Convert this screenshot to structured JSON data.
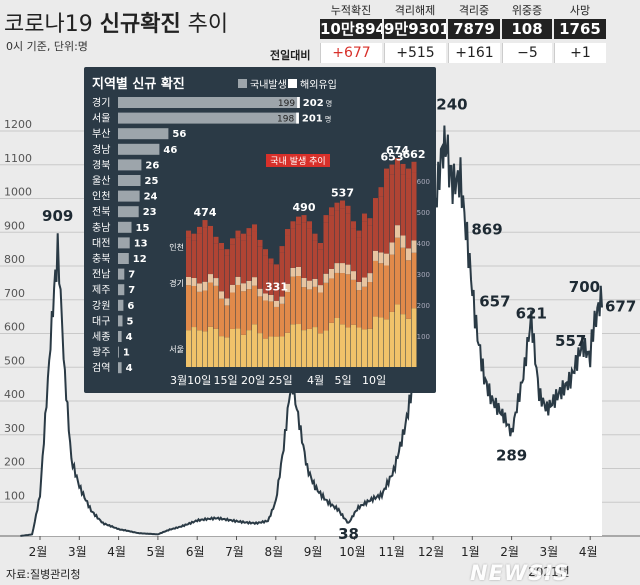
{
  "title": {
    "prefix": "코로나19 ",
    "bold": "신규확진",
    "suffix": " 추이"
  },
  "subtitle": "0시 기준, 단위:명",
  "source": "자료:질병관리청",
  "watermark": "NEWSIS",
  "stats": {
    "change_label": "전일대비",
    "items": [
      {
        "label": "누적확진",
        "value": "10만8945",
        "change": "+677",
        "highlight": true
      },
      {
        "label": "격리해제",
        "value": "9만9301",
        "change": "+515"
      },
      {
        "label": "격리중",
        "value": "7879",
        "change": "+161"
      },
      {
        "label": "위중증",
        "value": "108",
        "change": "−5"
      },
      {
        "label": "사망",
        "value": "1765",
        "change": "+1"
      }
    ]
  },
  "colors": {
    "line": "#2a3a45",
    "fill": "#ffffff",
    "panel": "#2b3a46",
    "hbar": "#9da5ab",
    "red": "#d8302a",
    "domestic_light": "#f0c26a",
    "domestic_mid": "#e18a4a",
    "domestic_dark": "#b04434",
    "overseas": "#e8c4a0"
  },
  "chart_data": [
    {
      "type": "area",
      "title": "코로나19 신규확진 추이",
      "ylabel": "명",
      "ylim": [
        0,
        1300
      ],
      "yticks": [
        100,
        200,
        300,
        400,
        500,
        600,
        700,
        800,
        900,
        1000,
        1100,
        1200
      ],
      "month_labels": [
        "2월",
        "3월",
        "4월",
        "5월",
        "6월",
        "7월",
        "8월",
        "9월",
        "10월",
        "11월",
        "12월",
        "1월",
        "2월",
        "3월",
        "4월"
      ],
      "year_label": "2021년",
      "anchors": [
        {
          "month": 1.5,
          "value": 0
        },
        {
          "month": 1.8,
          "value": 5
        },
        {
          "month": 2.0,
          "value": 120
        },
        {
          "month": 2.3,
          "value": 600
        },
        {
          "month": 2.45,
          "value": 909
        },
        {
          "month": 2.6,
          "value": 500
        },
        {
          "month": 2.8,
          "value": 220
        },
        {
          "month": 3.0,
          "value": 150
        },
        {
          "month": 3.3,
          "value": 80
        },
        {
          "month": 3.6,
          "value": 40
        },
        {
          "month": 4.0,
          "value": 20
        },
        {
          "month": 4.5,
          "value": 8
        },
        {
          "month": 5.0,
          "value": 5
        },
        {
          "month": 5.3,
          "value": 20
        },
        {
          "month": 5.6,
          "value": 30
        },
        {
          "month": 6.0,
          "value": 45
        },
        {
          "month": 6.5,
          "value": 50
        },
        {
          "month": 7.0,
          "value": 45
        },
        {
          "month": 7.5,
          "value": 40
        },
        {
          "month": 7.8,
          "value": 45
        },
        {
          "month": 8.0,
          "value": 100
        },
        {
          "month": 8.2,
          "value": 250
        },
        {
          "month": 8.4,
          "value": 441
        },
        {
          "month": 8.6,
          "value": 320
        },
        {
          "month": 8.8,
          "value": 200
        },
        {
          "month": 9.0,
          "value": 150
        },
        {
          "month": 9.3,
          "value": 110
        },
        {
          "month": 9.6,
          "value": 80
        },
        {
          "month": 9.85,
          "value": 38
        },
        {
          "month": 10.1,
          "value": 80
        },
        {
          "month": 10.4,
          "value": 100
        },
        {
          "month": 10.7,
          "value": 120
        },
        {
          "month": 11.0,
          "value": 200
        },
        {
          "month": 11.3,
          "value": 350
        },
        {
          "month": 11.6,
          "value": 550
        },
        {
          "month": 11.9,
          "value": 800
        },
        {
          "month": 12.2,
          "value": 1050
        },
        {
          "month": 12.35,
          "value": 1240
        },
        {
          "month": 12.5,
          "value": 1000
        },
        {
          "month": 12.7,
          "value": 1050
        },
        {
          "month": 12.9,
          "value": 869
        },
        {
          "month": 13.1,
          "value": 657
        },
        {
          "month": 13.3,
          "value": 500
        },
        {
          "month": 13.5,
          "value": 420
        },
        {
          "month": 13.8,
          "value": 350
        },
        {
          "month": 14.0,
          "value": 289
        },
        {
          "month": 14.3,
          "value": 450
        },
        {
          "month": 14.5,
          "value": 621
        },
        {
          "month": 14.7,
          "value": 420
        },
        {
          "month": 14.9,
          "value": 390
        },
        {
          "month": 15.2,
          "value": 450
        },
        {
          "month": 15.5,
          "value": 480
        },
        {
          "month": 15.8,
          "value": 557
        },
        {
          "month": 16.0,
          "value": 500
        },
        {
          "month": 16.15,
          "value": 700
        },
        {
          "month": 16.3,
          "value": 677
        }
      ],
      "annotations": [
        {
          "month": 2.45,
          "value": 909,
          "label": "909"
        },
        {
          "month": 9.85,
          "value": 38,
          "label": "38"
        },
        {
          "month": 12.35,
          "value": 1240,
          "label": "1240"
        },
        {
          "month": 12.9,
          "value": 869,
          "label": "869"
        },
        {
          "month": 13.1,
          "value": 657,
          "label": "657"
        },
        {
          "month": 14.0,
          "value": 289,
          "label": "289"
        },
        {
          "month": 14.5,
          "value": 621,
          "label": "621"
        },
        {
          "month": 15.8,
          "value": 557,
          "label": "557"
        },
        {
          "month": 16.15,
          "value": 700,
          "label": "700"
        },
        {
          "month": 16.3,
          "value": 677,
          "label": "677"
        }
      ]
    },
    {
      "type": "bar",
      "title": "지역별 신규 확진",
      "legend": [
        "국내발생",
        "해외유입"
      ],
      "unit_suffix": "명",
      "categories": [
        "경기",
        "서울",
        "부산",
        "경남",
        "경북",
        "울산",
        "인천",
        "전북",
        "충남",
        "대전",
        "충북",
        "전남",
        "제주",
        "강원",
        "대구",
        "세종",
        "광주",
        "검역"
      ],
      "domestic": [
        199,
        198,
        null,
        null,
        null,
        null,
        null,
        null,
        null,
        null,
        null,
        null,
        null,
        null,
        null,
        null,
        null,
        null
      ],
      "totals": [
        202,
        201,
        56,
        46,
        26,
        25,
        24,
        23,
        15,
        13,
        12,
        7,
        7,
        6,
        5,
        4,
        1,
        4
      ]
    },
    {
      "type": "bar",
      "title": "국내 발생 추이",
      "stack_labels": [
        "인천",
        "경기",
        "서울"
      ],
      "x_labels": [
        "3월10일",
        "15일",
        "20일",
        "25일",
        "4월",
        "5일",
        "10일"
      ],
      "ylim": [
        0,
        700
      ],
      "yticks": [
        100,
        200,
        300,
        400,
        500,
        600
      ],
      "values": [
        440,
        430,
        452,
        474,
        455,
        420,
        400,
        380,
        415,
        440,
        430,
        448,
        460,
        410,
        380,
        350,
        331,
        390,
        445,
        470,
        485,
        490,
        470,
        430,
        400,
        490,
        515,
        530,
        537,
        520,
        470,
        440,
        495,
        480,
        545,
        580,
        640,
        653,
        674,
        655,
        640,
        662
      ],
      "annotations": [
        {
          "index": 3,
          "label": "474"
        },
        {
          "index": 16,
          "label": "331"
        },
        {
          "index": 21,
          "label": "490"
        },
        {
          "index": 28,
          "label": "537"
        },
        {
          "index": 37,
          "label": "653"
        },
        {
          "index": 38,
          "label": "674"
        },
        {
          "index": 41,
          "label": "662"
        }
      ]
    }
  ]
}
